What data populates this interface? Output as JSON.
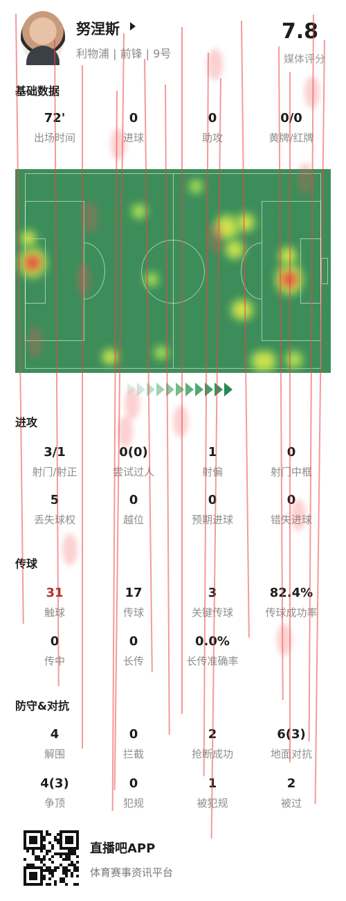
{
  "player": {
    "name": "努涅斯",
    "meta": "利物浦 | 前锋 | 9号",
    "rating": "7.8",
    "rating_label": "媒体评分"
  },
  "sections": {
    "basic": "基础数据",
    "attack": "进攻",
    "passing": "传球",
    "defense": "防守&对抗"
  },
  "basic": [
    {
      "value": "72'",
      "label": "出场时间"
    },
    {
      "value": "0",
      "label": "进球"
    },
    {
      "value": "0",
      "label": "助攻"
    },
    {
      "value": "0/0",
      "label": "黄牌/红牌"
    }
  ],
  "attack": [
    {
      "value": "3/1",
      "label": "射门/射正"
    },
    {
      "value": "0(0)",
      "label": "尝试过人"
    },
    {
      "value": "1",
      "label": "射偏"
    },
    {
      "value": "0",
      "label": "射门中框"
    },
    {
      "value": "5",
      "label": "丢失球权"
    },
    {
      "value": "0",
      "label": "越位"
    },
    {
      "value": "0",
      "label": "预期进球"
    },
    {
      "value": "0",
      "label": "错失进球"
    }
  ],
  "passing": [
    {
      "value": "31",
      "label": "触球"
    },
    {
      "value": "17",
      "label": "传球"
    },
    {
      "value": "3",
      "label": "关键传球"
    },
    {
      "value": "82.4%",
      "label": "传球成功率"
    },
    {
      "value": "0",
      "label": "传中"
    },
    {
      "value": "0",
      "label": "长传"
    },
    {
      "value": "0.0%",
      "label": "长传准确率"
    }
  ],
  "defense": [
    {
      "value": "4",
      "label": "解围"
    },
    {
      "value": "0",
      "label": "拦截"
    },
    {
      "value": "2",
      "label": "抢断成功"
    },
    {
      "value": "6(3)",
      "label": "地面对抗"
    },
    {
      "value": "4(3)",
      "label": "争顶"
    },
    {
      "value": "0",
      "label": "犯规"
    },
    {
      "value": "1",
      "label": "被犯规"
    },
    {
      "value": "2",
      "label": "被过"
    }
  ],
  "footer": {
    "app_name": "直播吧APP",
    "tagline": "体育赛事资讯平台"
  },
  "colors": {
    "pitch": "#3d8d5a",
    "heat_low": "#7fd05a",
    "heat_mid": "#d7e04a",
    "heat_high": "#e7493d",
    "chevron": "#4faa76"
  }
}
